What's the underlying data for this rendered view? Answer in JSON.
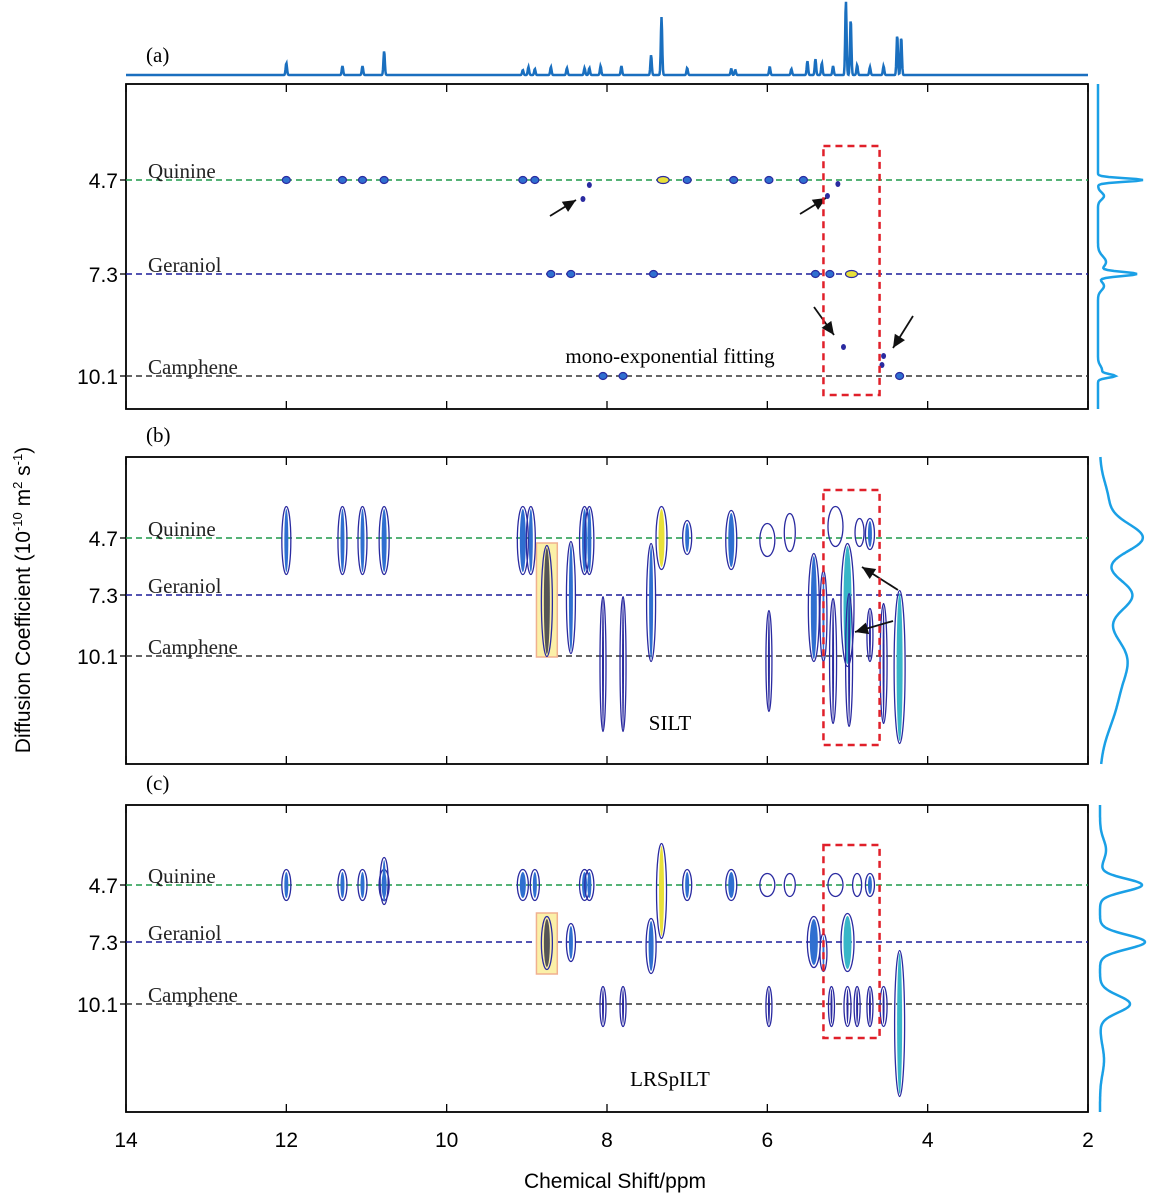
{
  "figure": {
    "ylabel_main": "Diffusion Coefficient (10",
    "ylabel_exp": "-10",
    "ylabel_mid": " m",
    "ylabel_exp2": "2",
    "ylabel_end": " s",
    "ylabel_exp3": "-1",
    "ylabel_close": ")",
    "xlabel": "Chemical Shift/ppm"
  },
  "colors": {
    "axis": "#000000",
    "spectrum": "#1a6fbf",
    "projection": "#1aa0e6",
    "quinine_line": "#1f9a4a",
    "geraniol_line": "#1c1c9a",
    "camphene_line": "#333333",
    "dashbox": "#e0202a",
    "peak_dark": "#2a2aa0",
    "peak_mid": "#2f6fd0",
    "peak_light": "#38b6c8",
    "peak_yellow": "#e8e03a",
    "highlight_fill": "#fbf0a8",
    "highlight_stroke": "#f0b090"
  },
  "chart_data": {
    "type": "heatmap",
    "x_range": [
      14,
      2
    ],
    "x_ticks": [
      "14",
      "12",
      "10",
      "8",
      "6",
      "4",
      "2"
    ],
    "components": [
      {
        "name": "Quinine",
        "D": "4.7"
      },
      {
        "name": "Geraniol",
        "D": "7.3"
      },
      {
        "name": "Camphene",
        "D": "10.1"
      }
    ],
    "panels": [
      {
        "label": "(a)",
        "annotation": "mono-exponential fitting",
        "dash_box_ppm": [
          5.3,
          4.6
        ],
        "peaks": [
          {
            "ppm": 12.0,
            "comp": "Quinine"
          },
          {
            "ppm": 11.3,
            "comp": "Quinine"
          },
          {
            "ppm": 11.05,
            "comp": "Quinine"
          },
          {
            "ppm": 10.78,
            "comp": "Quinine"
          },
          {
            "ppm": 9.05,
            "comp": "Quinine"
          },
          {
            "ppm": 8.9,
            "comp": "Quinine"
          },
          {
            "ppm": 7.3,
            "comp": "Quinine"
          },
          {
            "ppm": 7.0,
            "comp": "Quinine"
          },
          {
            "ppm": 6.42,
            "comp": "Quinine"
          },
          {
            "ppm": 5.98,
            "comp": "Quinine"
          },
          {
            "ppm": 5.55,
            "comp": "Quinine"
          },
          {
            "ppm": 8.7,
            "comp": "Geraniol"
          },
          {
            "ppm": 8.45,
            "comp": "Geraniol"
          },
          {
            "ppm": 7.42,
            "comp": "Geraniol"
          },
          {
            "ppm": 5.4,
            "comp": "Geraniol"
          },
          {
            "ppm": 5.22,
            "comp": "Geraniol"
          },
          {
            "ppm": 4.95,
            "comp": "Geraniol"
          },
          {
            "ppm": 8.05,
            "comp": "Camphene"
          },
          {
            "ppm": 7.8,
            "comp": "Camphene"
          },
          {
            "ppm": 4.35,
            "comp": "Camphene"
          }
        ]
      },
      {
        "label": "(b)",
        "annotation": "SILT",
        "dash_box_ppm": [
          5.3,
          4.6
        ],
        "highlight_ppm": [
          8.88,
          8.62
        ]
      },
      {
        "label": "(c)",
        "annotation": "LRSpILT",
        "dash_box_ppm": [
          5.3,
          4.6
        ],
        "highlight_ppm": [
          8.88,
          8.62
        ]
      }
    ]
  }
}
